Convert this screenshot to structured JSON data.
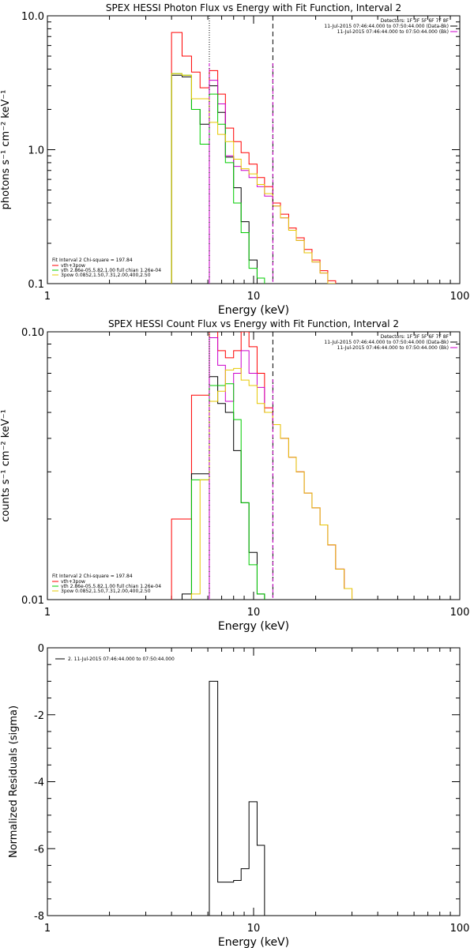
{
  "chart_data": [
    {
      "type": "line",
      "title": "SPEX HESSI Photon Flux vs Energy with Fit Function, Interval 2",
      "xlabel": "Energy (keV)",
      "ylabel": "photons s⁻¹ cm⁻² keV⁻¹",
      "xscale": "log",
      "yscale": "log",
      "xlim": [
        1,
        100
      ],
      "ylim": [
        0.1,
        10
      ],
      "x_ticks": [
        "1",
        "10",
        "100"
      ],
      "y_ticks": [
        "0.1",
        "1.0",
        "10.0"
      ],
      "vlines": [
        {
          "x": 6.1,
          "style": "dotted",
          "color": "#000000"
        },
        {
          "x": 12.4,
          "style": "dashed",
          "color": "#000000"
        }
      ],
      "legend_right": [
        "Detectors: 1F 3F 5F 6F 7F 8F",
        "11-Jul-2015 07:46:44.000 to 07:50:44.000 (Data-Bk)",
        "11-Jul-2015 07:46:44.000 to 07:50:44.000 (Bk)"
      ],
      "legend_right_colors": [
        "",
        "#000000",
        "#cc00cc"
      ],
      "legend_left_header": "Fit Interval  2    Chi-square = 197.84",
      "legend_left": [
        {
          "text": "vth+3pow",
          "color": "#ff0000"
        },
        {
          "text": "vth 2.86e-05,5.82,1.00  full chian 1.26e-04",
          "color": "#00cc00"
        },
        {
          "text": "3pow 0.0852,1.50,7.31,2.00,400,2.50",
          "color": "#e6c800"
        }
      ],
      "edges": [
        4.0,
        4.5,
        5.0,
        5.5,
        6.1,
        6.7,
        7.3,
        8.0,
        8.7,
        9.5,
        10.4,
        11.3,
        12.4,
        13.5,
        14.8,
        16.1,
        17.6,
        19.2,
        21.0,
        22.9,
        25.0
      ],
      "series": [
        {
          "name": "vth+3pow",
          "color": "#ff0000",
          "values": [
            7.5,
            5.0,
            3.8,
            2.9,
            3.9,
            2.6,
            1.45,
            1.15,
            0.95,
            0.78,
            0.62,
            0.53,
            0.4,
            0.33,
            0.26,
            0.22,
            0.18,
            0.15,
            0.125,
            0.105
          ]
        },
        {
          "name": "Data-Bk",
          "color": "#000000",
          "values": [
            3.6,
            3.5,
            2.0,
            1.55,
            3.0,
            1.9,
            0.88,
            0.52,
            0.29,
            0.15,
            null,
            null,
            null,
            null,
            null,
            null,
            null,
            null,
            null,
            null
          ]
        },
        {
          "name": "Bk",
          "color": "#cc00cc",
          "values": [
            null,
            null,
            null,
            null,
            3.3,
            2.2,
            0.9,
            0.75,
            0.7,
            0.62,
            0.53,
            0.45,
            0.38,
            0.31,
            0.25,
            0.21,
            0.17,
            0.145,
            0.12,
            0.1
          ]
        },
        {
          "name": "vth",
          "color": "#00cc00",
          "values": [
            3.7,
            3.6,
            2.0,
            1.1,
            2.6,
            1.55,
            0.8,
            0.4,
            0.24,
            0.13,
            0.11,
            null,
            null,
            null,
            null,
            null,
            null,
            null,
            null,
            null
          ]
        },
        {
          "name": "3pow",
          "color": "#e6c800",
          "values": [
            3.7,
            3.6,
            2.4,
            2.4,
            1.6,
            1.3,
            1.15,
            0.85,
            0.72,
            0.66,
            0.55,
            0.47,
            0.38,
            0.31,
            0.25,
            0.21,
            0.17,
            0.145,
            0.12,
            0.1
          ]
        }
      ]
    },
    {
      "type": "line",
      "title": "SPEX HESSI Count Flux vs Energy with Fit Function, Interval 2",
      "xlabel": "Energy (keV)",
      "ylabel": "counts s⁻¹ cm⁻² keV⁻¹",
      "xscale": "log",
      "yscale": "log",
      "xlim": [
        1,
        100
      ],
      "ylim": [
        0.01,
        0.1
      ],
      "x_ticks": [
        "1",
        "10",
        "100"
      ],
      "y_ticks": [
        "0.01",
        "0.10"
      ],
      "vlines": [
        {
          "x": 6.1,
          "style": "dotted",
          "color": "#000000"
        },
        {
          "x": 12.4,
          "style": "dashed",
          "color": "#000000"
        }
      ],
      "legend_right": [
        "Detectors: 1F 3F 5F 6F 7F 8F",
        "11-Jul-2015 07:46:44.000 to 07:50:44.000 (Data-Bk)",
        "11-Jul-2015 07:46:44.000 to 07:50:44.000 (Bk)"
      ],
      "legend_right_colors": [
        "",
        "#000000",
        "#cc00cc"
      ],
      "legend_left_header": "Fit Interval  2    Chi-square = 197.84",
      "legend_left": [
        {
          "text": "vth+3pow",
          "color": "#ff0000"
        },
        {
          "text": "vth 2.86e-05,5.82,1.00  full chian 1.26e-04",
          "color": "#00cc00"
        },
        {
          "text": "3pow 0.0852,1.50,7.31,2.00,400,2.50",
          "color": "#e6c800"
        }
      ],
      "edges": [
        4.0,
        4.5,
        5.0,
        5.5,
        6.1,
        6.7,
        7.3,
        8.0,
        8.7,
        9.5,
        10.4,
        11.3,
        12.4,
        13.5,
        14.8,
        16.1,
        17.6,
        19.2,
        21.0,
        22.9,
        25.0,
        27.5,
        30.0
      ],
      "series": [
        {
          "name": "vth+3pow",
          "color": "#ff0000",
          "values": [
            0.02,
            0.02,
            0.058,
            0.058,
            0.105,
            0.085,
            0.08,
            0.085,
            0.1,
            0.088,
            0.07,
            0.052,
            0.045,
            0.04,
            0.034,
            0.03,
            0.025,
            0.022,
            0.019,
            0.016,
            0.013,
            0.011
          ]
        },
        {
          "name": "Data-Bk",
          "color": "#000000",
          "values": [
            null,
            0.0105,
            0.0295,
            0.0295,
            0.068,
            0.054,
            0.05,
            0.036,
            0.023,
            0.015,
            0.0105,
            null,
            null,
            null,
            null,
            null,
            null,
            null,
            null,
            null,
            null,
            null
          ]
        },
        {
          "name": "Bk",
          "color": "#cc00cc",
          "values": [
            null,
            null,
            null,
            null,
            0.095,
            0.075,
            0.055,
            0.07,
            0.085,
            0.07,
            0.062,
            0.05,
            0.045,
            0.04,
            0.034,
            0.03,
            0.025,
            0.022,
            0.019,
            0.016,
            0.013,
            0.011
          ]
        },
        {
          "name": "vth",
          "color": "#00cc00",
          "values": [
            null,
            null,
            0.028,
            0.028,
            0.063,
            0.063,
            0.064,
            0.047,
            0.023,
            0.0135,
            0.0105,
            null,
            null,
            null,
            null,
            null,
            null,
            null,
            null,
            null,
            null,
            null
          ]
        },
        {
          "name": "3pow",
          "color": "#e6c800",
          "values": [
            null,
            null,
            0.0105,
            0.028,
            0.055,
            0.06,
            0.072,
            0.073,
            0.066,
            0.063,
            0.054,
            0.05,
            0.045,
            0.04,
            0.034,
            0.03,
            0.025,
            0.022,
            0.019,
            0.016,
            0.013,
            0.011
          ]
        }
      ]
    },
    {
      "type": "line",
      "title": "",
      "xlabel": "Energy (keV)",
      "ylabel": "Normalized Residuals (sigma)",
      "xscale": "log",
      "yscale": "linear",
      "xlim": [
        1,
        100
      ],
      "ylim": [
        -8,
        0
      ],
      "x_ticks": [
        "1",
        "10",
        "100"
      ],
      "y_ticks": [
        "-8",
        "-6",
        "-4",
        "-2",
        "0"
      ],
      "legend_left_header": "",
      "legend_top": "2. 11-Jul-2015 07:46:44.000 to 07:50:44.000",
      "edges": [
        6.1,
        6.7,
        7.3,
        8.0,
        8.7,
        9.5,
        10.4,
        11.3,
        12.4
      ],
      "series": [
        {
          "name": "",
          "color": "#000000",
          "values": [
            -1.0,
            -7.0,
            -7.0,
            -6.95,
            -6.6,
            -4.6,
            -5.9,
            -8.0
          ]
        }
      ]
    }
  ]
}
